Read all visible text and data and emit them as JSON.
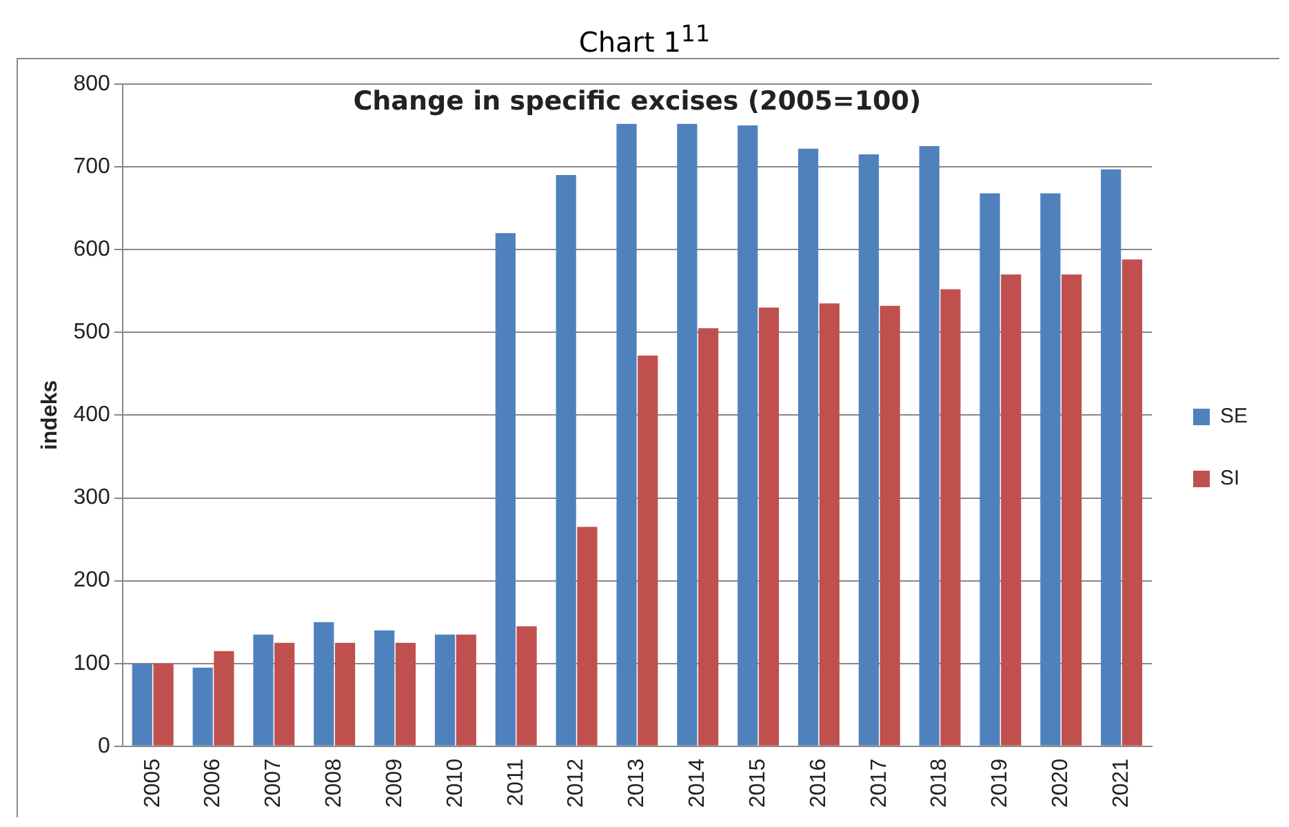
{
  "chart_data": {
    "type": "bar",
    "title": "Chart 1$^{11}$",
    "subtitle": "Change in specific excises (2005=100)",
    "ylabel": "indeks",
    "categories": [
      "2005",
      "2006",
      "2007",
      "2008",
      "2009",
      "2010",
      "2011",
      "2012",
      "2013",
      "2014",
      "2015",
      "2016",
      "2017",
      "2018",
      "2019",
      "2020",
      "2021"
    ],
    "series": [
      {
        "name": "SE",
        "color": "#4f81bd",
        "values": [
          100,
          95,
          135,
          150,
          140,
          135,
          620,
          690,
          752,
          752,
          750,
          722,
          715,
          725,
          668,
          668,
          697
        ]
      },
      {
        "name": "SI",
        "color": "#c0504d",
        "values": [
          100,
          115,
          125,
          125,
          125,
          135,
          145,
          265,
          472,
          505,
          530,
          535,
          532,
          552,
          570,
          570,
          588
        ]
      }
    ],
    "ylim": [
      0,
      800
    ],
    "yticks": [
      0,
      100,
      200,
      300,
      400,
      500,
      600,
      700,
      800
    ],
    "grid": "y",
    "legend": "right"
  }
}
